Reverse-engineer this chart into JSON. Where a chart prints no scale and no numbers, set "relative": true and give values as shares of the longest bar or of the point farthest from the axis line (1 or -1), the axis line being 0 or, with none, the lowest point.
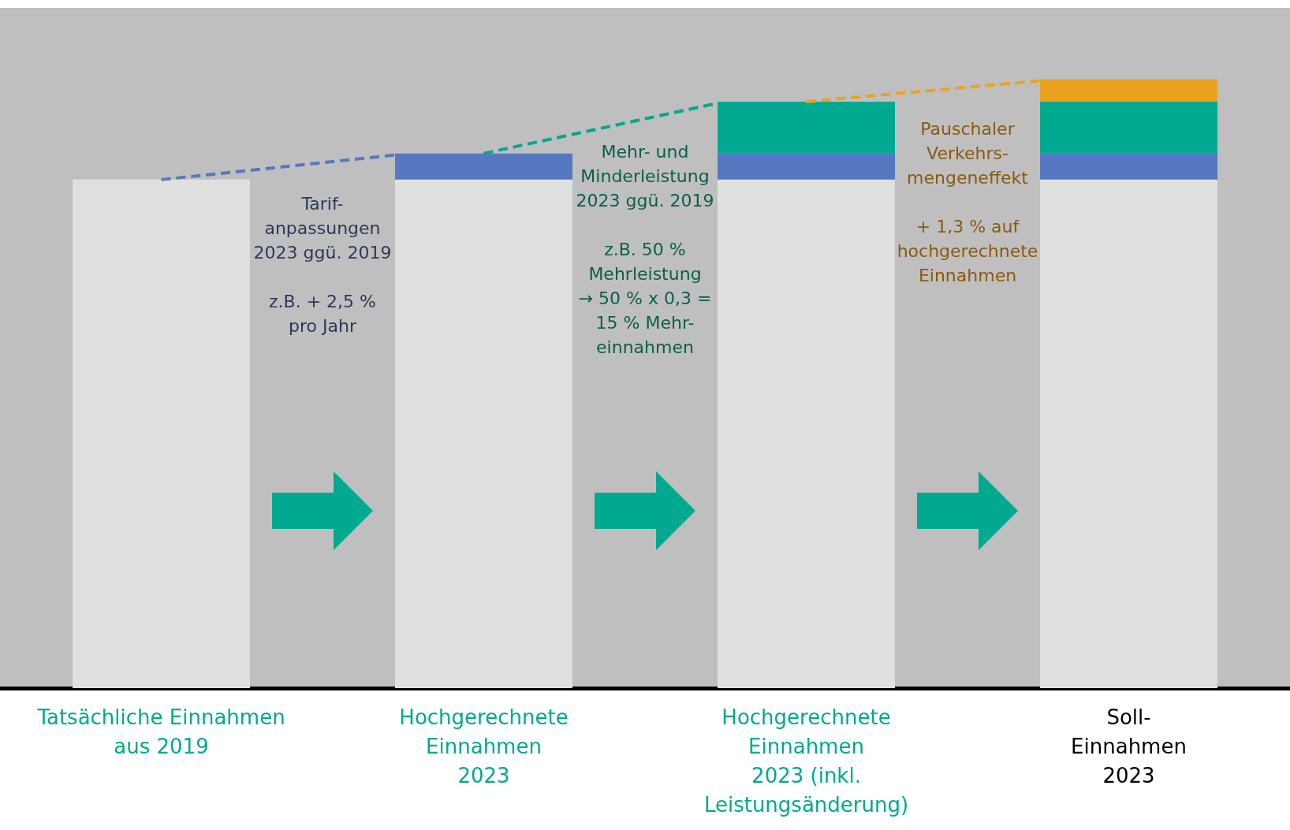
{
  "chart_data": {
    "type": "bar",
    "stacked": true,
    "relative": true,
    "categories": [
      "Tatsächliche Einnahmen\naus 2019",
      "Hochgerechnete\nEinnahmen\n2023",
      "Hochgerechnete\nEinnahmen\n2023 (inkl.\nLeistungsänderung)",
      "Soll-\nEinnahmen\n2023"
    ],
    "series": [
      {
        "color": "#dfe0df",
        "values": [
          0.835,
          0.835,
          0.835,
          0.835
        ]
      },
      {
        "color": "#5578c0",
        "values": [
          null,
          0.043,
          0.043,
          0.043
        ]
      },
      {
        "color": "#00a98f",
        "values": [
          null,
          null,
          0.085,
          0.085
        ]
      },
      {
        "color": "#eba31f",
        "values": [
          null,
          null,
          null,
          0.037
        ]
      }
    ],
    "annotations": [
      "Tarif-\nanpassungen\n2023 ggü. 2019\n\nz.B. + 2,5 %\npro Jahr",
      "Mehr- und\nMinderleistung\n2023 ggü. 2019\n\nz.B. 50 %\nMehrleistung\n→ 50 % x 0,3 =\n15 % Mehr-\neinnahmen",
      "Pauschaler\nVerkehrs-\nmengeneffekt\n\n+ 1,3 % auf\nhochgerechnete\nEinnahmen"
    ]
  }
}
